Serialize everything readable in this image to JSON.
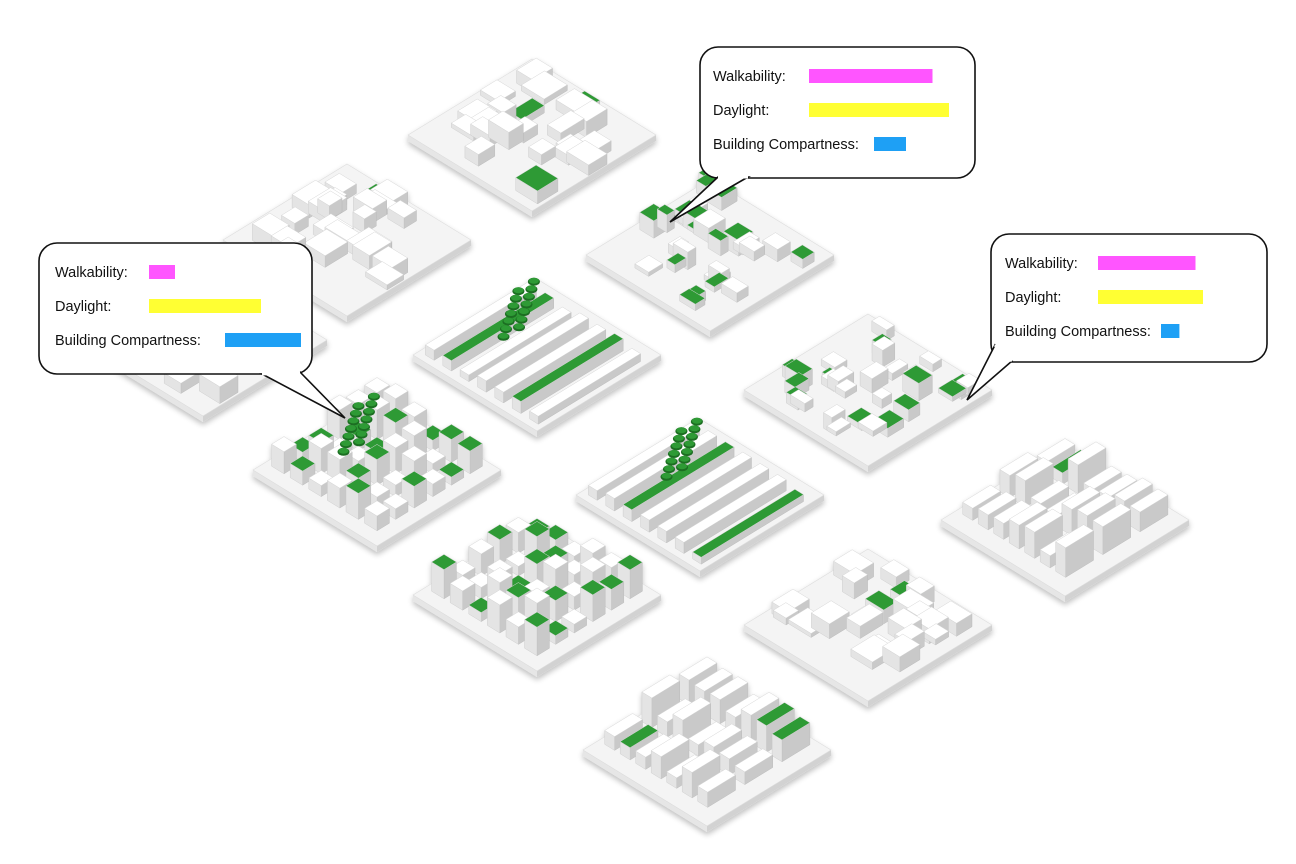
{
  "colors": {
    "walkability": "#ff55ff",
    "daylight": "#ffff33",
    "compactness": "#1ea0f5",
    "green": "#2e9a35",
    "green_dark": "#1c6e22",
    "block_top": "#ffffff",
    "block_left": "#e4e4e4",
    "block_right": "#c9c9c9",
    "ground": "#f4f4f4",
    "callout_stroke": "#111111"
  },
  "metric_labels": {
    "walkability": "Walkability:",
    "daylight": "Daylight:",
    "compactness": "Building Compartness:"
  },
  "callouts": [
    {
      "id": "left",
      "walkability": 0.2,
      "daylight": 0.8,
      "compactness": 0.95
    },
    {
      "id": "top",
      "walkability": 0.95,
      "daylight": 1.0,
      "compactness": 0.4
    },
    {
      "id": "right",
      "walkability": 0.75,
      "daylight": 0.75,
      "compactness": 0.23
    }
  ],
  "tiles": [
    {
      "id": "tile-top-radial",
      "pattern": "radial",
      "green": 0.05
    },
    {
      "id": "tile-upper-left-diagonal",
      "pattern": "diagonal",
      "green": 0.05
    },
    {
      "id": "tile-left-blank",
      "pattern": "plain",
      "green": 0.0
    },
    {
      "id": "tile-top-right-organic",
      "pattern": "organic",
      "green": 0.45
    },
    {
      "id": "tile-center-striped-trees",
      "pattern": "stripes-trees",
      "green": 0.6
    },
    {
      "id": "tile-left-grid-trees",
      "pattern": "grid-trees",
      "green": 0.35
    },
    {
      "id": "tile-right-organic",
      "pattern": "organic",
      "green": 0.45
    },
    {
      "id": "tile-center-stripes",
      "pattern": "stripes-trees",
      "green": 0.2
    },
    {
      "id": "tile-lower-left-grid",
      "pattern": "grid",
      "green": 0.5
    },
    {
      "id": "tile-far-right-slabs",
      "pattern": "slabs",
      "green": 0.08
    },
    {
      "id": "tile-lower-right-radial",
      "pattern": "radial",
      "green": 0.08
    },
    {
      "id": "tile-bottom-slabs",
      "pattern": "slabs",
      "green": 0.08
    }
  ]
}
